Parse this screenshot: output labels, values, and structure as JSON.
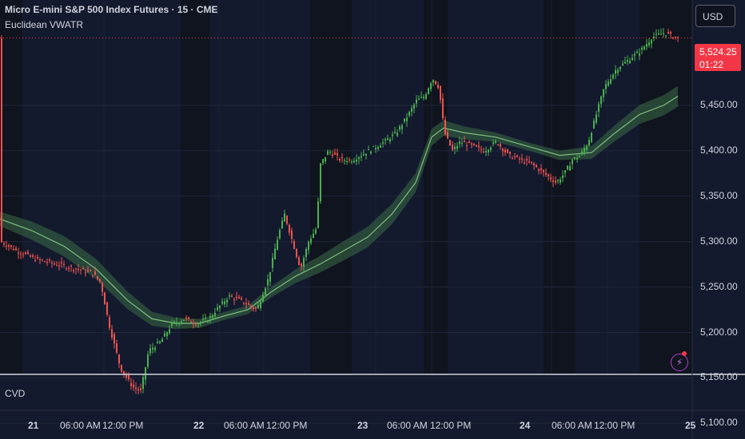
{
  "header": {
    "title": "Micro E-mini S&P 500 Index Futures · 15 · CME",
    "indicator": "Euclidean VWATR"
  },
  "price_scale": {
    "currency": "USD",
    "last_price": "5,524.25",
    "countdown": "01:22",
    "ticks": [
      "5,450.00",
      "5,400.00",
      "5,350.00",
      "5,300.00",
      "5,250.00",
      "5,200.00",
      "5,150.00",
      "5,100.00"
    ]
  },
  "time_axis": {
    "labels": [
      {
        "text": "21",
        "day": true
      },
      {
        "text": "06:00 AM",
        "day": false
      },
      {
        "text": "12:00 PM",
        "day": false
      },
      {
        "text": "22",
        "day": true
      },
      {
        "text": "06:00 AM",
        "day": false
      },
      {
        "text": "12:00 PM",
        "day": false
      },
      {
        "text": "23",
        "day": true
      },
      {
        "text": "06:00 AM",
        "day": false
      },
      {
        "text": "12:00 PM",
        "day": false
      },
      {
        "text": "24",
        "day": true
      },
      {
        "text": "06:00 AM",
        "day": false
      },
      {
        "text": "12:00 PM",
        "day": false
      },
      {
        "text": "25",
        "day": true
      }
    ]
  },
  "sub_pane": {
    "label": "CVD"
  },
  "colors": {
    "background": "#131a2e",
    "session_shade": "#10141f",
    "up": "#4caf50",
    "down": "#ef5350",
    "vwatr_line": "#7fbf7f",
    "vwatr_band": "#3b6b45",
    "last_price": "#f23645"
  },
  "icons": {
    "alert": "lightning-icon"
  },
  "chart_data": {
    "type": "line",
    "title": "Micro E-mini S&P 500 Index Futures · 15 · CME",
    "ylim": [
      5090,
      5540
    ],
    "x": [
      "21",
      "22",
      "23",
      "24",
      "25"
    ],
    "series": [
      {
        "name": "",
        "points": [
          [
            0,
            5300
          ],
          [
            20,
            5290
          ],
          [
            45,
            5280
          ],
          [
            70,
            5275
          ],
          [
            95,
            5270
          ],
          [
            115,
            5265
          ],
          [
            125,
            5255
          ],
          [
            135,
            5210
          ],
          [
            150,
            5160
          ],
          [
            165,
            5140
          ],
          [
            175,
            5135
          ],
          [
            185,
            5180
          ],
          [
            200,
            5190
          ],
          [
            215,
            5210
          ],
          [
            230,
            5215
          ],
          [
            245,
            5210
          ],
          [
            260,
            5215
          ],
          [
            270,
            5225
          ],
          [
            285,
            5240
          ],
          [
            300,
            5235
          ],
          [
            320,
            5225
          ],
          [
            335,
            5260
          ],
          [
            345,
            5300
          ],
          [
            355,
            5330
          ],
          [
            365,
            5300
          ],
          [
            375,
            5270
          ],
          [
            385,
            5300
          ],
          [
            395,
            5315
          ],
          [
            400,
            5385
          ],
          [
            410,
            5400
          ],
          [
            425,
            5390
          ],
          [
            440,
            5390
          ],
          [
            460,
            5400
          ],
          [
            480,
            5410
          ],
          [
            495,
            5420
          ],
          [
            510,
            5440
          ],
          [
            520,
            5455
          ],
          [
            530,
            5460
          ],
          [
            540,
            5480
          ],
          [
            548,
            5470
          ],
          [
            555,
            5420
          ],
          [
            565,
            5400
          ],
          [
            575,
            5410
          ],
          [
            590,
            5405
          ],
          [
            605,
            5400
          ],
          [
            620,
            5410
          ],
          [
            635,
            5395
          ],
          [
            650,
            5390
          ],
          [
            665,
            5385
          ],
          [
            680,
            5375
          ],
          [
            695,
            5365
          ],
          [
            705,
            5375
          ],
          [
            715,
            5390
          ],
          [
            725,
            5395
          ],
          [
            735,
            5410
          ],
          [
            745,
            5440
          ],
          [
            755,
            5470
          ],
          [
            770,
            5490
          ],
          [
            785,
            5500
          ],
          [
            800,
            5510
          ],
          [
            815,
            5525
          ],
          [
            830,
            5530
          ],
          [
            845,
            5524
          ]
        ]
      },
      {
        "name": "",
        "points": [
          [
            0,
            5325
          ],
          [
            40,
            5312
          ],
          [
            80,
            5295
          ],
          [
            120,
            5270
          ],
          [
            160,
            5235
          ],
          [
            190,
            5215
          ],
          [
            220,
            5210
          ],
          [
            250,
            5210
          ],
          [
            280,
            5218
          ],
          [
            310,
            5225
          ],
          [
            340,
            5245
          ],
          [
            370,
            5262
          ],
          [
            400,
            5275
          ],
          [
            430,
            5290
          ],
          [
            460,
            5305
          ],
          [
            490,
            5330
          ],
          [
            520,
            5365
          ],
          [
            540,
            5415
          ],
          [
            555,
            5425
          ],
          [
            580,
            5420
          ],
          [
            620,
            5415
          ],
          [
            660,
            5405
          ],
          [
            700,
            5395
          ],
          [
            740,
            5398
          ],
          [
            770,
            5420
          ],
          [
            800,
            5440
          ],
          [
            830,
            5450
          ],
          [
            848,
            5460
          ]
        ]
      }
    ]
  }
}
